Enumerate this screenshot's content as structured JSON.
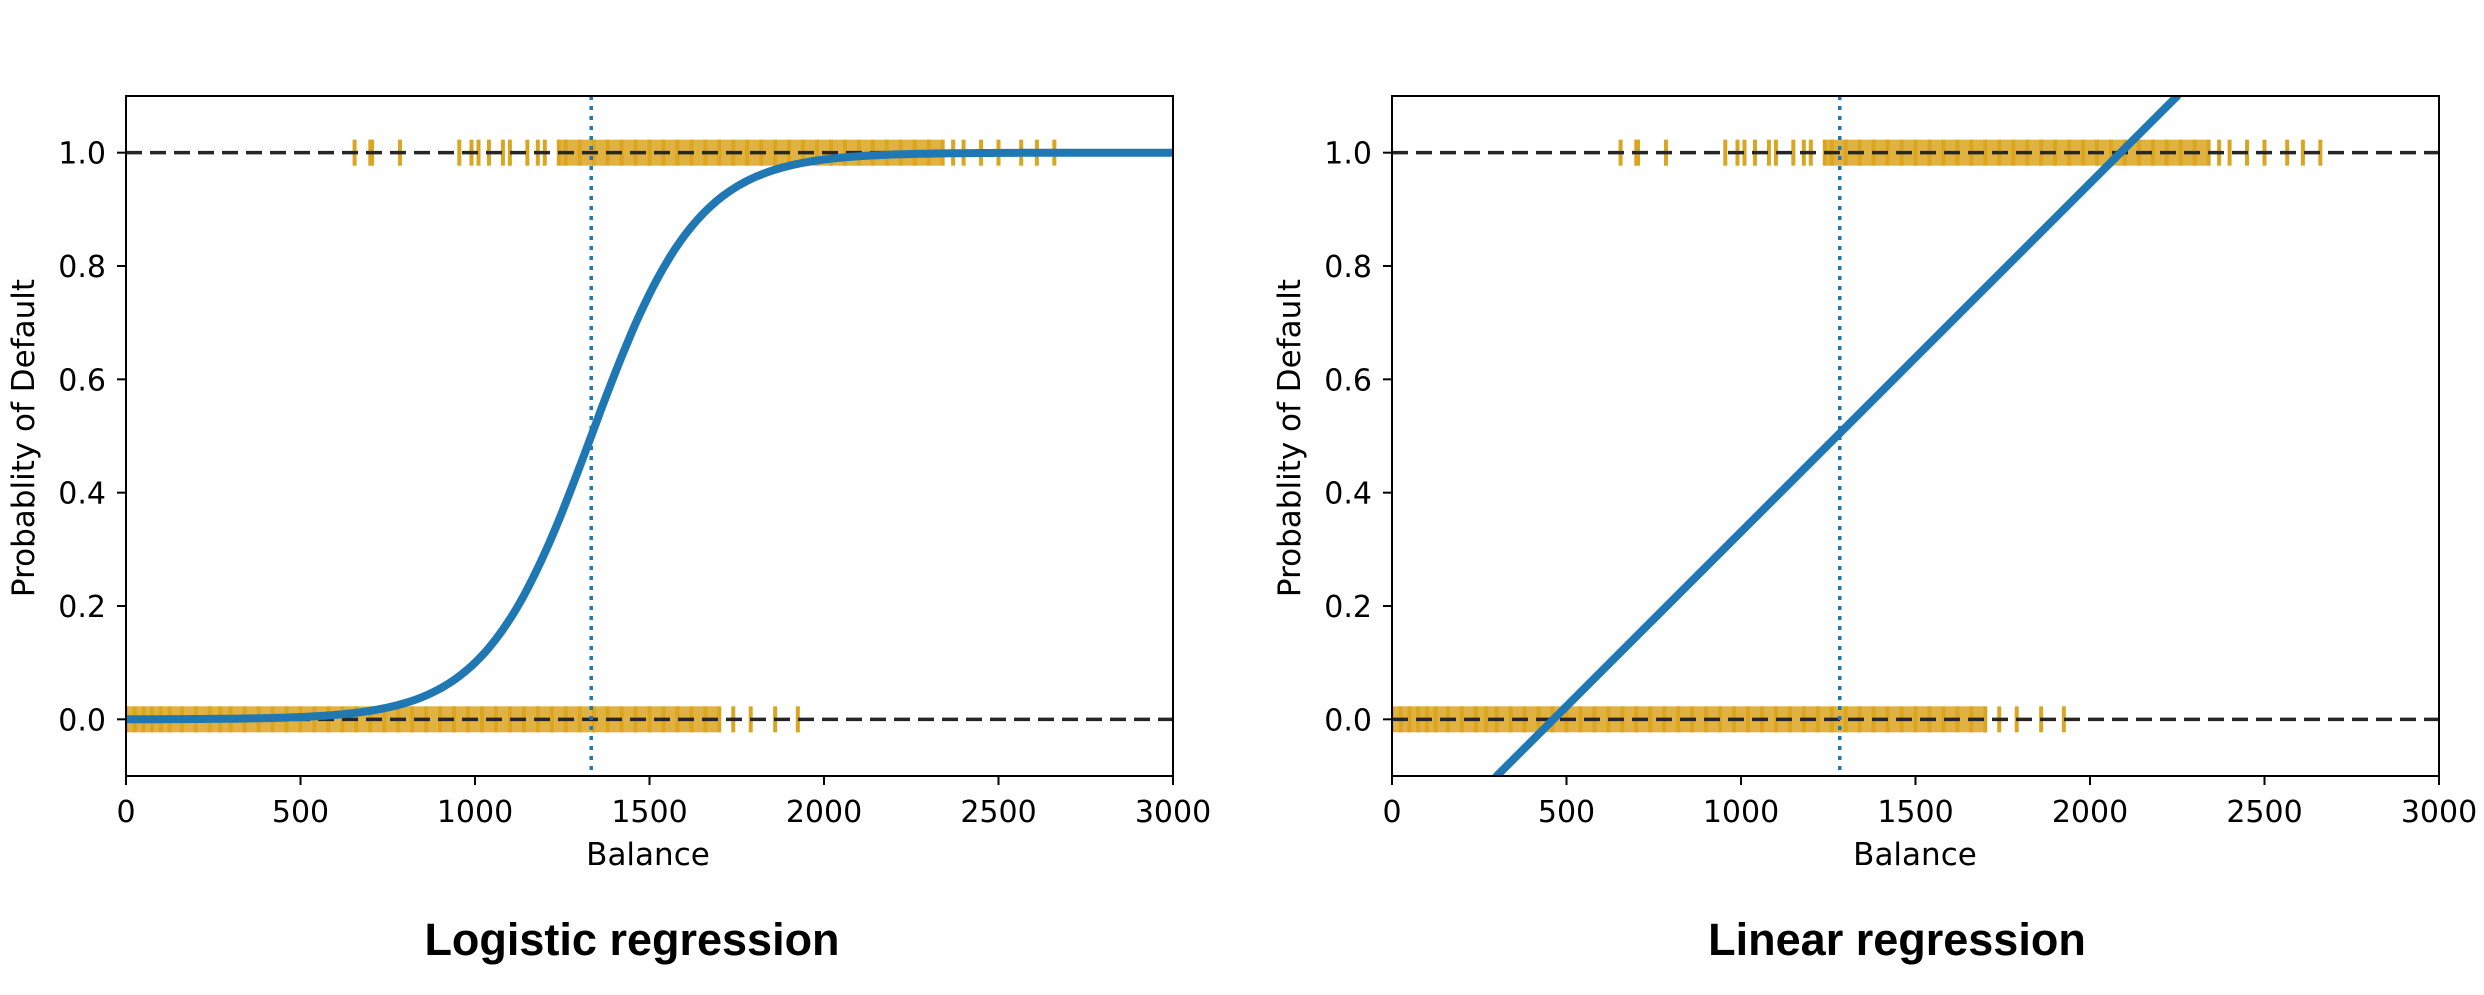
{
  "chart_data": [
    {
      "type": "line",
      "caption": "Logistic regression",
      "xlabel": "Balance",
      "ylabel": "Probablity of Default",
      "xlim": [
        0,
        3000
      ],
      "ylim": [
        -0.1,
        1.1
      ],
      "xticks": [
        "0",
        "500",
        "1000",
        "1500",
        "2000",
        "2500",
        "3000"
      ],
      "yticks": [
        "0.0",
        "0.2",
        "0.4",
        "0.6",
        "0.8",
        "1.0"
      ],
      "grid": false,
      "colors": {
        "curve": "#1f77b4",
        "rug": "#daa520",
        "reference": "#262626",
        "threshold": "#1f77b4"
      },
      "reference_lines": [
        0.0,
        1.0
      ],
      "threshold_x": 1333,
      "curve": {
        "kind": "logistic",
        "midpoint": 1333,
        "rate": 0.0066
      },
      "rug_default_yes": [
        655,
        700,
        705,
        785,
        955,
        990,
        1010,
        1040,
        1080,
        1100,
        1150,
        1180,
        1200,
        1240,
        1260,
        1300,
        1340,
        1380,
        1420,
        1460,
        1500,
        1540,
        1580,
        1620,
        1660,
        1700,
        1740,
        1780,
        1820,
        1860,
        1900,
        1940,
        1980,
        2020,
        2060,
        2100,
        2140,
        2180,
        2220,
        2260,
        2300,
        2340,
        2370,
        2400,
        2450,
        2500,
        2565,
        2610,
        2660
      ],
      "rug_default_no": [
        0,
        25,
        50,
        75,
        100,
        125,
        160,
        200,
        240,
        270,
        300,
        340,
        380,
        420,
        460,
        500,
        540,
        580,
        620,
        660,
        700,
        740,
        780,
        820,
        860,
        900,
        940,
        980,
        1020,
        1060,
        1100,
        1140,
        1180,
        1220,
        1260,
        1300,
        1340,
        1380,
        1420,
        1460,
        1500,
        1540,
        1580,
        1620,
        1660,
        1700,
        1740,
        1790,
        1860,
        1925
      ]
    },
    {
      "type": "line",
      "caption": "Linear regression",
      "xlabel": "Balance",
      "ylabel": "Probablity of Default",
      "xlim": [
        0,
        3000
      ],
      "ylim": [
        -0.1,
        1.1
      ],
      "xticks": [
        "0",
        "500",
        "1000",
        "1500",
        "2000",
        "2500",
        "3000"
      ],
      "yticks": [
        "0.0",
        "0.2",
        "0.4",
        "0.6",
        "0.8",
        "1.0"
      ],
      "grid": false,
      "colors": {
        "curve": "#1f77b4",
        "rug": "#daa520",
        "reference": "#262626",
        "threshold": "#1f77b4"
      },
      "reference_lines": [
        0.0,
        1.0
      ],
      "threshold_x": 1283,
      "curve": {
        "kind": "linear",
        "points": [
          [
            300,
            -0.1
          ],
          [
            2250,
            1.1
          ]
        ]
      },
      "rug_default_yes": [
        655,
        700,
        705,
        785,
        955,
        990,
        1010,
        1040,
        1080,
        1100,
        1150,
        1180,
        1200,
        1240,
        1260,
        1300,
        1340,
        1380,
        1420,
        1460,
        1500,
        1540,
        1580,
        1620,
        1660,
        1700,
        1740,
        1780,
        1820,
        1860,
        1900,
        1940,
        1980,
        2020,
        2060,
        2100,
        2140,
        2180,
        2220,
        2260,
        2300,
        2340,
        2370,
        2400,
        2450,
        2500,
        2565,
        2610,
        2660
      ],
      "rug_default_no": [
        0,
        25,
        50,
        75,
        100,
        125,
        160,
        200,
        240,
        270,
        300,
        340,
        380,
        420,
        460,
        500,
        540,
        580,
        620,
        660,
        700,
        740,
        780,
        820,
        860,
        900,
        940,
        980,
        1020,
        1060,
        1100,
        1140,
        1180,
        1220,
        1260,
        1300,
        1340,
        1380,
        1420,
        1460,
        1500,
        1540,
        1580,
        1620,
        1660,
        1700,
        1740,
        1790,
        1860,
        1925
      ]
    }
  ]
}
